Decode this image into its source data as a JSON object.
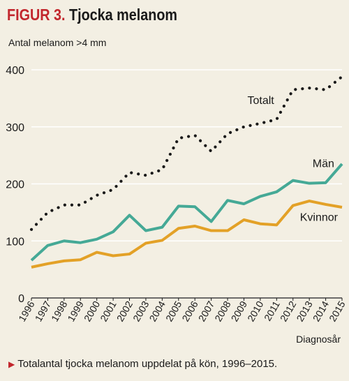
{
  "header": {
    "label": "FIGUR 3.",
    "title": "Tjocka melanom"
  },
  "caption": {
    "marker": "▶",
    "text": "Totalantal tjocka melanom uppdelat på kön, 1996–2015."
  },
  "colors": {
    "background": "#f3efe3",
    "accent": "#c2272d",
    "totalt": "#1a1a1a",
    "man": "#45a996",
    "kvinnor": "#e3a127",
    "grid": "#ffffff"
  },
  "chart_data": {
    "type": "line",
    "ylabel": "Antal melanom >4 mm",
    "xlabel": "Diagnosår",
    "ylim": [
      0,
      400
    ],
    "yticks": [
      0,
      100,
      200,
      300,
      400
    ],
    "grid": true,
    "x": [
      "1996",
      "1997",
      "1998",
      "1999",
      "2000",
      "2001",
      "2002",
      "2003",
      "2004",
      "2005",
      "2006",
      "2007",
      "2008",
      "2009",
      "2010",
      "2011",
      "2012",
      "2013",
      "2014",
      "2015"
    ],
    "series": [
      {
        "name": "Totalt",
        "style": "dotted",
        "color": "#1a1a1a",
        "values": [
          120,
          150,
          163,
          163,
          180,
          190,
          220,
          215,
          225,
          280,
          285,
          257,
          288,
          300,
          306,
          313,
          365,
          368,
          365,
          388
        ]
      },
      {
        "name": "Män",
        "style": "solid",
        "color": "#45a996",
        "values": [
          66,
          92,
          100,
          97,
          103,
          116,
          145,
          118,
          124,
          161,
          160,
          134,
          171,
          165,
          178,
          186,
          206,
          201,
          202,
          235
        ]
      },
      {
        "name": "Kvinnor",
        "style": "solid",
        "color": "#e3a127",
        "values": [
          54,
          60,
          65,
          67,
          80,
          74,
          77,
          96,
          101,
          122,
          126,
          118,
          118,
          137,
          130,
          128,
          162,
          170,
          164,
          159
        ]
      }
    ]
  }
}
